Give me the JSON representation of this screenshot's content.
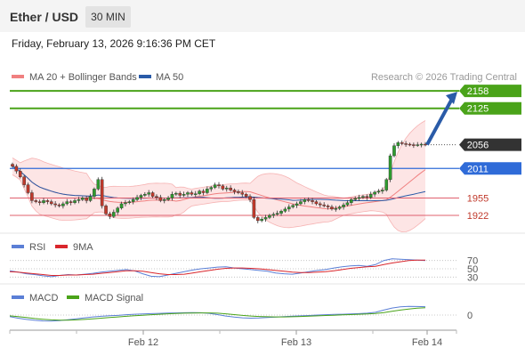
{
  "header": {
    "title": "Ether / USD",
    "timeframe": "30 MIN"
  },
  "datetime": "Friday, February 13, 2026 9:16:36 PM CET",
  "legend": {
    "ma20_label": "MA 20 + Bollinger Bands",
    "ma50_label": "MA 50",
    "copyright": "Research © 2026 Trading Central",
    "rsi_label": "RSI",
    "rsi_ma_label": "9MA",
    "macd_label": "MACD",
    "macd_signal_label": "MACD Signal"
  },
  "colors": {
    "ma20": "#f08080",
    "ma50": "#2a5ba8",
    "band_fill": "#fde0e0",
    "up_candle": "#2e9b2e",
    "down_candle": "#c0392b",
    "resistance": "#4aa319",
    "support": "#e0606e",
    "pivot": "#2f6bd8",
    "price_tag": "#333333",
    "arrow": "#2a5ba8",
    "rsi": "#5b7fd6",
    "rsi_ma": "#d9262c",
    "macd": "#5b7fd6",
    "macd_signal": "#4aa319"
  },
  "chart_data": [
    {
      "type": "candlestick",
      "title": "Ether / USD",
      "x_ticks": [
        "Feb 12",
        "Feb 13",
        "Feb 14"
      ],
      "price_levels": [
        {
          "value": 2158,
          "label": "2158",
          "kind": "resistance"
        },
        {
          "value": 2125,
          "label": "2125",
          "kind": "resistance"
        },
        {
          "value": 2056,
          "label": "2056",
          "kind": "last_price"
        },
        {
          "value": 2011,
          "label": "2011",
          "kind": "pivot"
        },
        {
          "value": 1955,
          "label": "1955",
          "kind": "support"
        },
        {
          "value": 1922,
          "label": "1922",
          "kind": "support"
        }
      ],
      "ylim": [
        1895,
        2165
      ],
      "closes": [
        2015,
        2006,
        1995,
        1980,
        1965,
        1950,
        1948,
        1946,
        1950,
        1948,
        1944,
        1942,
        1940,
        1944,
        1948,
        1946,
        1950,
        1952,
        1955,
        1950,
        1958,
        1972,
        1990,
        1940,
        1925,
        1920,
        1928,
        1936,
        1944,
        1946,
        1948,
        1952,
        1956,
        1960,
        1962,
        1965,
        1958,
        1956,
        1950,
        1952,
        1955,
        1962,
        1964,
        1960,
        1962,
        1965,
        1962,
        1963,
        1968,
        1965,
        1972,
        1975,
        1980,
        1978,
        1972,
        1974,
        1970,
        1967,
        1965,
        1962,
        1958,
        1952,
        1918,
        1912,
        1915,
        1918,
        1922,
        1924,
        1926,
        1930,
        1934,
        1938,
        1941,
        1944,
        1948,
        1952,
        1950,
        1948,
        1944,
        1942,
        1940,
        1938,
        1934,
        1935,
        1938,
        1942,
        1946,
        1952,
        1954,
        1956,
        1958,
        1956,
        1962,
        1966,
        1968,
        1970,
        1990,
        2035,
        2054,
        2060,
        2058,
        2057,
        2056,
        2055,
        2056,
        2057,
        2056
      ]
    },
    {
      "type": "line",
      "title": "RSI",
      "ylim": [
        20,
        80
      ],
      "levels": [
        70,
        50,
        30
      ],
      "series": [
        {
          "name": "RSI",
          "values": [
            45,
            42,
            38,
            36,
            33,
            31,
            34,
            36,
            35,
            37,
            39,
            42,
            44,
            46,
            48,
            45,
            38,
            32,
            31,
            35,
            39,
            43,
            47,
            50,
            52,
            54,
            55,
            52,
            50,
            48,
            46,
            44,
            40,
            38,
            37,
            40,
            43,
            46,
            48,
            52,
            55,
            57,
            58,
            56,
            60,
            70,
            74,
            73,
            72,
            71,
            70
          ]
        },
        {
          "name": "9MA",
          "values": [
            43,
            42,
            40,
            38,
            36,
            34,
            34,
            35,
            35,
            36,
            37,
            39,
            41,
            43,
            45,
            45,
            44,
            41,
            38,
            36,
            36,
            37,
            40,
            43,
            46,
            49,
            51,
            52,
            52,
            51,
            50,
            48,
            46,
            44,
            42,
            41,
            41,
            42,
            43,
            45,
            48,
            51,
            53,
            55,
            56,
            60,
            64,
            67,
            70,
            71,
            71
          ]
        }
      ]
    },
    {
      "type": "line",
      "title": "MACD",
      "levels": [
        0
      ],
      "ylim": [
        -8,
        8
      ],
      "series": [
        {
          "name": "MACD",
          "values": [
            -1,
            -2,
            -2.8,
            -3.4,
            -3.8,
            -3.9,
            -3.6,
            -3.0,
            -2.4,
            -1.8,
            -1.2,
            -0.8,
            -0.4,
            -0.2,
            0.2,
            0.5,
            0.7,
            0.9,
            1.1,
            1.3,
            1.4,
            1.5,
            1.6,
            1.5,
            1.1,
            0.3,
            -0.6,
            -1.3,
            -1.8,
            -2.0,
            -1.9,
            -1.6,
            -1.3,
            -1.0,
            -0.7,
            -0.5,
            -0.3,
            0.0,
            0.2,
            0.4,
            0.5,
            0.7,
            0.9,
            1.2,
            1.8,
            3.2,
            4.5,
            5.3,
            5.6,
            5.5,
            5.4
          ]
        },
        {
          "name": "MACD Signal",
          "values": [
            -0.5,
            -1.0,
            -1.6,
            -2.2,
            -2.7,
            -3.1,
            -3.3,
            -3.3,
            -3.1,
            -2.8,
            -2.4,
            -2.0,
            -1.6,
            -1.2,
            -0.8,
            -0.4,
            -0.1,
            0.2,
            0.5,
            0.8,
            1.0,
            1.2,
            1.3,
            1.4,
            1.4,
            1.2,
            0.8,
            0.3,
            -0.2,
            -0.6,
            -0.9,
            -1.1,
            -1.2,
            -1.2,
            -1.1,
            -0.9,
            -0.7,
            -0.5,
            -0.3,
            -0.1,
            0.1,
            0.3,
            0.5,
            0.7,
            1.0,
            1.6,
            2.4,
            3.2,
            3.9,
            4.4,
            4.7
          ]
        }
      ],
      "tick_labels": [
        "0"
      ]
    }
  ],
  "rsi_tick_labels": [
    "70",
    "50",
    "30"
  ]
}
